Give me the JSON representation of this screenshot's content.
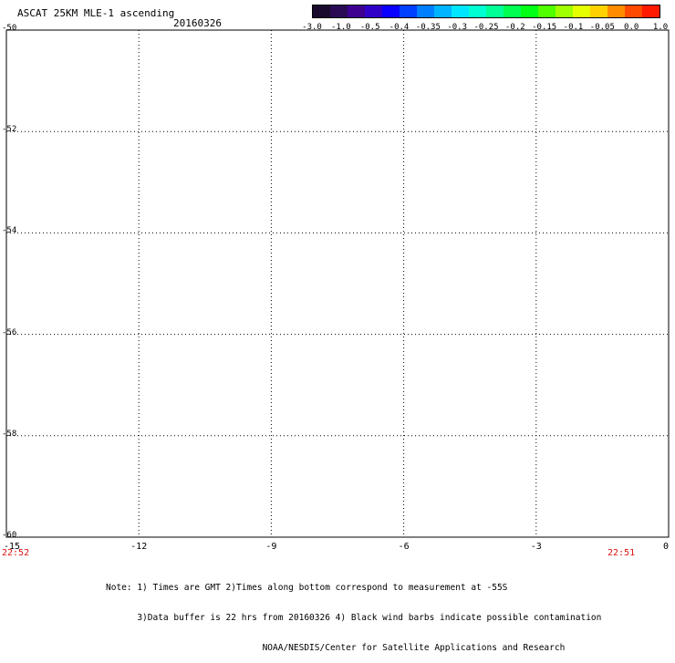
{
  "title": "ASCAT 25KM MLE-1 ascending",
  "date": "20160326",
  "colorbar": {
    "colors": [
      "#1a0a2e",
      "#2a0a55",
      "#3d0090",
      "#3000c8",
      "#0a00ff",
      "#0040ff",
      "#0080ff",
      "#00b4ff",
      "#00e6ff",
      "#00ffd2",
      "#00ff96",
      "#00ff50",
      "#00ff14",
      "#50ff00",
      "#a0ff00",
      "#e6ff00",
      "#ffd200",
      "#ff8c00",
      "#ff4a00",
      "#ff1a00"
    ],
    "tick_labels": [
      "-3.0",
      "-1.0",
      "-0.5",
      "-0.4",
      "-0.35",
      "-0.3",
      "-0.25",
      "-0.2",
      "-0.15",
      "-0.1",
      "-0.05",
      "0.0",
      "1.0"
    ]
  },
  "map": {
    "lon_range": [
      -15,
      0
    ],
    "lat_range": [
      -50,
      -60
    ],
    "lon_labels": [
      "-15",
      "-12",
      "-9",
      "-6",
      "-3",
      "0"
    ],
    "lat_labels": [
      "-50",
      "-52",
      "-54",
      "-56",
      "-58",
      "-60"
    ],
    "left_swath_color": "#ff8000",
    "right_swath_color": "#00ff1e",
    "edge_color": "#00ffff"
  },
  "times": {
    "left": "22:52",
    "right": "22:51"
  },
  "notes": [
    "Note: 1) Times are GMT 2)Times along bottom correspond to measurement at -55S",
    "      3)Data buffer is 22 hrs from 20160326 4) Black wind barbs indicate possible contamination",
    "                              NOAA/NESDIS/Center for Satellite Applications and Research"
  ]
}
